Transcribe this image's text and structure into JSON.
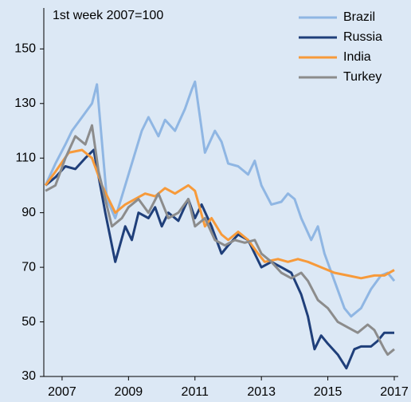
{
  "chart_data": {
    "type": "line",
    "subtitle": "1st week 2007=100",
    "xlim": [
      2006.45,
      2017.12
    ],
    "xticks": [
      2007,
      2009,
      2011,
      2013,
      2015,
      2017
    ],
    "ylim": [
      30,
      165
    ],
    "yticks": [
      30,
      50,
      70,
      90,
      110,
      130,
      150
    ],
    "grid": false,
    "legend": "upper right",
    "series": [
      {
        "name": "Brazil",
        "color": "#8fb6e3",
        "x": [
          2006.5,
          2006.8,
          2007.1,
          2007.3,
          2007.6,
          2007.9,
          2008.05,
          2008.35,
          2008.6,
          2008.9,
          2009.1,
          2009.4,
          2009.6,
          2009.9,
          2010.1,
          2010.4,
          2010.7,
          2010.9,
          2011.0,
          2011.3,
          2011.6,
          2011.8,
          2012.0,
          2012.3,
          2012.6,
          2012.8,
          2013.0,
          2013.3,
          2013.6,
          2013.8,
          2014.0,
          2014.2,
          2014.5,
          2014.7,
          2014.9,
          2015.2,
          2015.5,
          2015.7,
          2016.0,
          2016.3,
          2016.6,
          2016.8,
          2017.0
        ],
        "values": [
          100,
          108,
          115,
          120,
          125,
          130,
          137,
          95,
          88,
          100,
          108,
          120,
          125,
          118,
          124,
          120,
          128,
          135,
          138,
          112,
          120,
          116,
          108,
          107,
          104,
          109,
          100,
          93,
          94,
          97,
          95,
          88,
          80,
          85,
          75,
          65,
          55,
          52,
          55,
          62,
          67,
          68,
          65
        ]
      },
      {
        "name": "Russia",
        "color": "#1f3f7a",
        "x": [
          2006.5,
          2006.8,
          2007.1,
          2007.4,
          2007.7,
          2007.95,
          2008.3,
          2008.6,
          2008.9,
          2009.1,
          2009.3,
          2009.6,
          2009.8,
          2010.0,
          2010.2,
          2010.5,
          2010.8,
          2011.0,
          2011.2,
          2011.5,
          2011.8,
          2012.0,
          2012.3,
          2012.6,
          2012.8,
          2013.0,
          2013.3,
          2013.6,
          2013.9,
          2014.2,
          2014.4,
          2014.6,
          2014.8,
          2015.0,
          2015.3,
          2015.56,
          2015.8,
          2016.0,
          2016.3,
          2016.5,
          2016.7,
          2017.0
        ],
        "values": [
          100,
          103,
          107,
          106,
          110,
          113,
          90,
          72,
          85,
          80,
          90,
          88,
          92,
          85,
          90,
          87,
          95,
          88,
          93,
          85,
          75,
          78,
          82,
          80,
          75,
          70,
          72,
          70,
          68,
          60,
          52,
          40,
          45,
          42,
          38,
          33,
          40,
          41,
          41,
          43,
          46,
          46
        ]
      },
      {
        "name": "India",
        "color": "#f79a3a",
        "x": [
          2006.5,
          2006.8,
          2007.2,
          2007.6,
          2007.9,
          2008.2,
          2008.6,
          2008.9,
          2009.2,
          2009.5,
          2009.8,
          2010.1,
          2010.4,
          2010.8,
          2011.0,
          2011.3,
          2011.5,
          2011.8,
          2012.0,
          2012.3,
          2012.6,
          2012.9,
          2013.1,
          2013.5,
          2013.8,
          2014.1,
          2014.4,
          2014.8,
          2015.2,
          2015.6,
          2016.0,
          2016.4,
          2016.7,
          2017.0
        ],
        "values": [
          100,
          105,
          112,
          113,
          110,
          100,
          90,
          93,
          95,
          97,
          96,
          99,
          97,
          100,
          98,
          85,
          88,
          82,
          80,
          83,
          80,
          75,
          72,
          73,
          72,
          73,
          72,
          70,
          68,
          67,
          66,
          67,
          67,
          69
        ]
      },
      {
        "name": "Turkey",
        "color": "#8c8c8c",
        "x": [
          2006.5,
          2006.8,
          2007.1,
          2007.4,
          2007.7,
          2007.9,
          2008.1,
          2008.5,
          2008.8,
          2009.0,
          2009.3,
          2009.6,
          2009.9,
          2010.2,
          2010.5,
          2010.8,
          2011.0,
          2011.3,
          2011.6,
          2011.9,
          2012.2,
          2012.5,
          2012.8,
          2013.0,
          2013.3,
          2013.6,
          2013.9,
          2014.2,
          2014.4,
          2014.7,
          2015.0,
          2015.3,
          2015.6,
          2015.9,
          2016.2,
          2016.4,
          2016.7,
          2016.8,
          2017.0
        ],
        "values": [
          98,
          100,
          110,
          118,
          115,
          122,
          105,
          85,
          88,
          92,
          95,
          90,
          97,
          88,
          90,
          95,
          85,
          88,
          80,
          78,
          80,
          79,
          80,
          75,
          72,
          68,
          66,
          68,
          65,
          58,
          55,
          50,
          48,
          46,
          49,
          47,
          40,
          38,
          40
        ]
      }
    ]
  }
}
